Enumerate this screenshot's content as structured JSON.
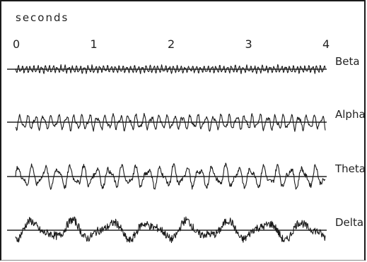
{
  "chart_data": {
    "type": "line",
    "title": "",
    "xlabel": "seconds",
    "ylabel": "",
    "xlim": [
      0,
      4
    ],
    "x_ticks": [
      "0",
      "1",
      "2",
      "3",
      "4"
    ],
    "grid": false,
    "series": [
      {
        "name": "Beta",
        "cycles_per_second": 20,
        "relative_amplitude": 0.35,
        "description": "fast, low-amplitude oscillation"
      },
      {
        "name": "Alpha",
        "cycles_per_second": 10,
        "relative_amplitude": 0.7,
        "description": "regular medium oscillation"
      },
      {
        "name": "Theta",
        "cycles_per_second": 6,
        "relative_amplitude": 1.0,
        "description": "slower, larger oscillation"
      },
      {
        "name": "Delta",
        "cycles_per_second": 2,
        "relative_amplitude": 0.9,
        "description": "slow waves with superimposed noise"
      }
    ]
  }
}
